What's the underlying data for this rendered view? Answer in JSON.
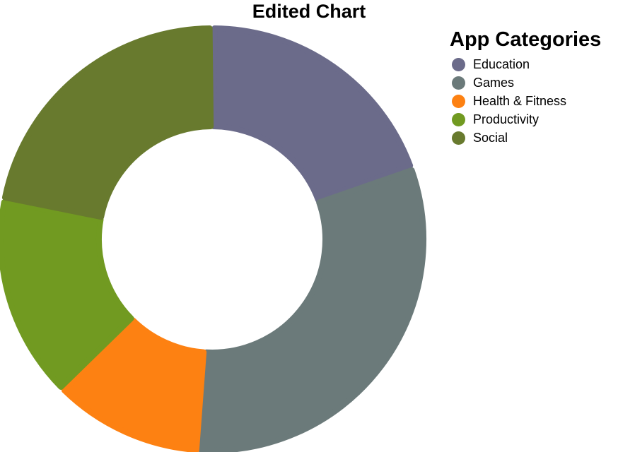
{
  "chart_data": {
    "type": "pie",
    "title": "Edited Chart",
    "legend_title": "App Categories",
    "legend_position": "right",
    "categories": [
      "Education",
      "Games",
      "Health & Fitness",
      "Productivity",
      "Social"
    ],
    "values": [
      19.5,
      31.5,
      11.5,
      15.5,
      22.0
    ],
    "colors": [
      "#6b6b8a",
      "#6b7a7a",
      "#fd8112",
      "#719a21",
      "#687a2e"
    ]
  }
}
